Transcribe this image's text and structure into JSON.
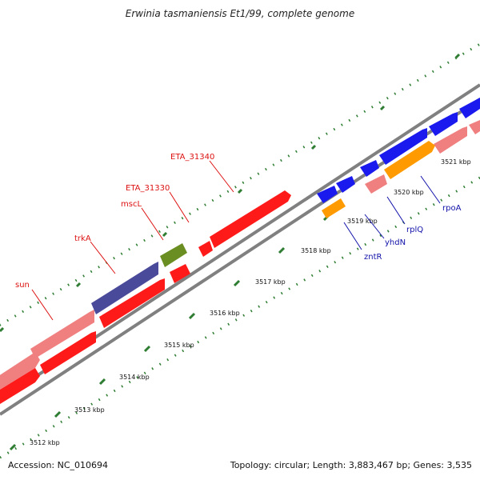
{
  "title": "Erwinia tasmaniensis Et1/99, complete genome",
  "accession": "Accession: NC_010694",
  "summary": "Topology: circular; Length: 3,883,467 bp; Genes: 3,535",
  "colors": {
    "backbone": "#808080",
    "ticks": "#2e7d32",
    "red": "#ff1a1a",
    "pink": "#f08080",
    "navy": "#4a4a9a",
    "olive": "#6b8e23",
    "blue": "#1a1aee",
    "orange": "#ff9a00",
    "label_red": "#dd1111",
    "label_blue": "#1111aa"
  },
  "ruler": [
    {
      "label": "3512 kbp"
    },
    {
      "label": "3513 kbp"
    },
    {
      "label": "3514 kbp"
    },
    {
      "label": "3515 kbp"
    },
    {
      "label": "3516 kbp"
    },
    {
      "label": "3517 kbp"
    },
    {
      "label": "3518 kbp"
    },
    {
      "label": "3519 kbp"
    },
    {
      "label": "3520 kbp"
    },
    {
      "label": "3521 kbp"
    }
  ],
  "labels": [
    {
      "text": "sun"
    },
    {
      "text": "trkA"
    },
    {
      "text": "mscL"
    },
    {
      "text": "ETA_31330"
    },
    {
      "text": "ETA_31340"
    },
    {
      "text": "zntR"
    },
    {
      "text": "yhdN"
    },
    {
      "text": "rplQ"
    },
    {
      "text": "rpoA"
    }
  ]
}
